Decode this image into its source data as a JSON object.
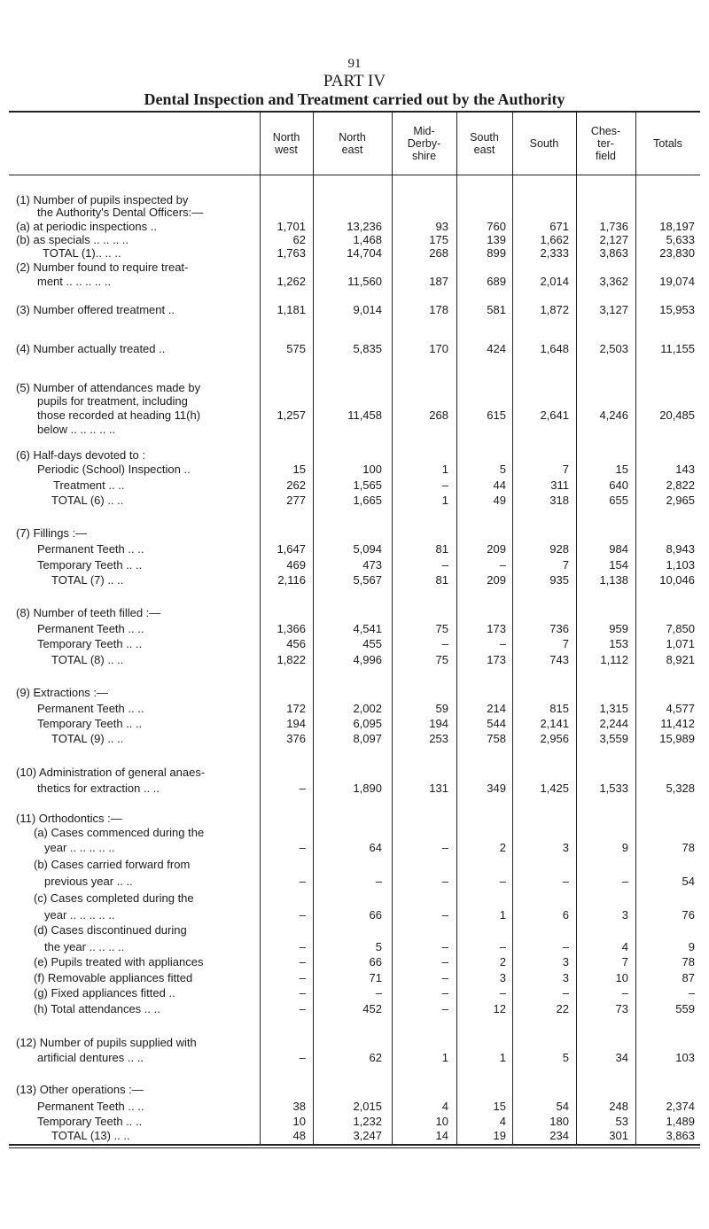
{
  "page_number": "91",
  "part": "PART IV",
  "title": "Dental Inspection and Treatment carried out by the Authority",
  "table": {
    "columns": [
      [
        "North",
        "west"
      ],
      [
        "North",
        "east"
      ],
      [
        "Mid-",
        "Derby-",
        "shire"
      ],
      [
        "South",
        "east"
      ],
      [
        "South"
      ],
      [
        "Ches-",
        "ter-",
        "field"
      ],
      [
        "Totals"
      ]
    ],
    "rows": [
      {
        "label": "(1) Number of pupils inspected by"
      },
      {
        "label": "the Authority's Dental Officers:—"
      },
      {
        "label": "(a) at periodic inspections ..",
        "values": [
          "1,701",
          "13,236",
          "93",
          "760",
          "671",
          "1,736",
          "18,197"
        ]
      },
      {
        "label": "(b) as specials .. .. .. ..",
        "values": [
          "62",
          "1,468",
          "175",
          "139",
          "1,662",
          "2,127",
          "5,633"
        ]
      },
      {
        "label": "TOTAL (1).. .. ..",
        "values": [
          "1,763",
          "14,704",
          "268",
          "899",
          "2,333",
          "3,863",
          "23,830"
        ]
      },
      {
        "label": "(2) Number found to require treat-"
      },
      {
        "label": "ment .. .. .. .. ..",
        "values": [
          "1,262",
          "11,560",
          "187",
          "689",
          "2,014",
          "3,362",
          "19,074"
        ]
      },
      {
        "label": "(3) Number offered treatment ..",
        "values": [
          "1,181",
          "9,014",
          "178",
          "581",
          "1,872",
          "3,127",
          "15,953"
        ]
      },
      {
        "label": "(4) Number actually treated ..",
        "values": [
          "575",
          "5,835",
          "170",
          "424",
          "1,648",
          "2,503",
          "11,155"
        ]
      },
      {
        "label": "(5) Number of attendances made by"
      },
      {
        "label": "pupils for treatment, including"
      },
      {
        "label": "those recorded at heading 11(h)",
        "values": [
          "1,257",
          "11,458",
          "268",
          "615",
          "2,641",
          "4,246",
          "20,485"
        ]
      },
      {
        "label": "below .. .. .. .. .."
      },
      {
        "label": "(6) Half-days devoted to :"
      },
      {
        "label": "Periodic (School) Inspection ..",
        "values": [
          "15",
          "100",
          "1",
          "5",
          "7",
          "15",
          "143"
        ]
      },
      {
        "label": "Treatment .. ..",
        "values": [
          "262",
          "1,565",
          "–",
          "44",
          "311",
          "640",
          "2,822"
        ]
      },
      {
        "label": "TOTAL (6) .. ..",
        "values": [
          "277",
          "1,665",
          "1",
          "49",
          "318",
          "655",
          "2,965"
        ]
      },
      {
        "label": "(7) Fillings :—"
      },
      {
        "label": "Permanent Teeth .. ..",
        "values": [
          "1,647",
          "5,094",
          "81",
          "209",
          "928",
          "984",
          "8,943"
        ]
      },
      {
        "label": "Temporary Teeth .. ..",
        "values": [
          "469",
          "473",
          "–",
          "–",
          "7",
          "154",
          "1,103"
        ]
      },
      {
        "label": "TOTAL (7) .. ..",
        "values": [
          "2,116",
          "5,567",
          "81",
          "209",
          "935",
          "1,138",
          "10,046"
        ]
      },
      {
        "label": "(8) Number of teeth filled :—"
      },
      {
        "label": "Permanent Teeth .. ..",
        "values": [
          "1,366",
          "4,541",
          "75",
          "173",
          "736",
          "959",
          "7,850"
        ]
      },
      {
        "label": "Temporary Teeth .. ..",
        "values": [
          "456",
          "455",
          "–",
          "–",
          "7",
          "153",
          "1,071"
        ]
      },
      {
        "label": "TOTAL (8) .. ..",
        "values": [
          "1,822",
          "4,996",
          "75",
          "173",
          "743",
          "1,112",
          "8,921"
        ]
      },
      {
        "label": "(9) Extractions :—"
      },
      {
        "label": "Permanent Teeth .. ..",
        "values": [
          "172",
          "2,002",
          "59",
          "214",
          "815",
          "1,315",
          "4,577"
        ]
      },
      {
        "label": "Temporary Teeth .. ..",
        "values": [
          "194",
          "6,095",
          "194",
          "544",
          "2,141",
          "2,244",
          "11,412"
        ]
      },
      {
        "label": "TOTAL (9) .. ..",
        "values": [
          "376",
          "8,097",
          "253",
          "758",
          "2,956",
          "3,559",
          "15,989"
        ]
      },
      {
        "label": "(10) Administration of general anaes-"
      },
      {
        "label": "thetics for extraction .. ..",
        "values": [
          "–",
          "1,890",
          "131",
          "349",
          "1,425",
          "1,533",
          "5,328"
        ]
      },
      {
        "label": "(11) Orthodontics :—"
      },
      {
        "label": "(a) Cases commenced during the"
      },
      {
        "label": "year .. .. .. .. ..",
        "values": [
          "–",
          "64",
          "–",
          "2",
          "3",
          "9",
          "78"
        ]
      },
      {
        "label": "(b) Cases carried forward from"
      },
      {
        "label": "previous year .. ..",
        "values": [
          "–",
          "–",
          "–",
          "–",
          "–",
          "–",
          "54"
        ]
      },
      {
        "label": "(c) Cases completed during the"
      },
      {
        "label": "year .. .. .. .. ..",
        "values": [
          "–",
          "66",
          "–",
          "1",
          "6",
          "3",
          "76"
        ]
      },
      {
        "label": "(d) Cases discontinued during"
      },
      {
        "label": "the year .. .. .. ..",
        "values": [
          "–",
          "5",
          "–",
          "–",
          "–",
          "4",
          "9"
        ]
      },
      {
        "label": "(e) Pupils treated with appliances",
        "values": [
          "–",
          "66",
          "–",
          "2",
          "3",
          "7",
          "78"
        ]
      },
      {
        "label": "(f) Removable appliances fitted",
        "values": [
          "–",
          "71",
          "–",
          "3",
          "3",
          "10",
          "87"
        ]
      },
      {
        "label": "(g) Fixed appliances fitted ..",
        "values": [
          "–",
          "–",
          "–",
          "–",
          "–",
          "–",
          "–"
        ]
      },
      {
        "label": "(h) Total attendances .. ..",
        "values": [
          "–",
          "452",
          "–",
          "12",
          "22",
          "73",
          "559"
        ]
      },
      {
        "label": "(12) Number of pupils supplied with"
      },
      {
        "label": "artificial dentures .. ..",
        "values": [
          "–",
          "62",
          "1",
          "1",
          "5",
          "34",
          "103"
        ]
      },
      {
        "label": "(13) Other operations :—"
      },
      {
        "label": "Permanent Teeth .. ..",
        "values": [
          "38",
          "2,015",
          "4",
          "15",
          "54",
          "248",
          "2,374"
        ]
      },
      {
        "label": "Temporary Teeth .. ..",
        "values": [
          "10",
          "1,232",
          "10",
          "4",
          "180",
          "53",
          "1,489"
        ]
      },
      {
        "label": "TOTAL (13) .. ..",
        "values": [
          "48",
          "3,247",
          "14",
          "19",
          "234",
          "301",
          "3,863"
        ]
      }
    ]
  }
}
